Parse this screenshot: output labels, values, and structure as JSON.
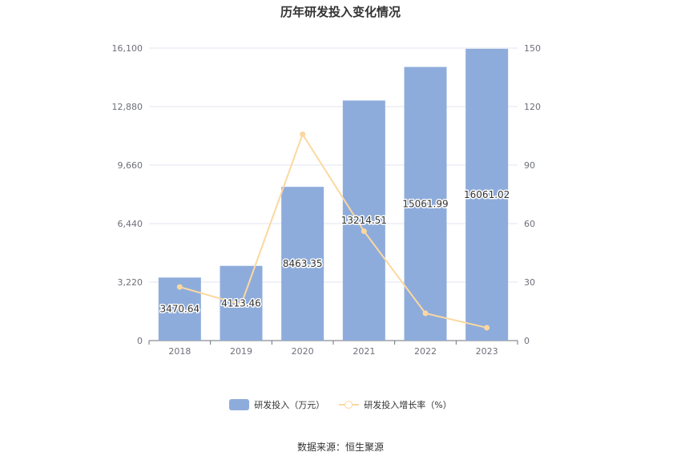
{
  "chart_data": {
    "type": "bar",
    "title": "历年研发投入变化情况",
    "categories": [
      "2018",
      "2019",
      "2020",
      "2021",
      "2022",
      "2023"
    ],
    "series": [
      {
        "name": "研发投入（万元）",
        "type": "bar",
        "axis": "left",
        "values": [
          3470.64,
          4113.46,
          8463.35,
          13214.51,
          15061.99,
          16061.02
        ],
        "labels": [
          "3470.64",
          "4113.46",
          "8463.35",
          "13214.51",
          "15061.99",
          "16061.02"
        ],
        "color": "#8eacdb"
      },
      {
        "name": "研发投入增长率（%）",
        "type": "line",
        "axis": "right",
        "values": [
          27.5,
          18.5,
          105.8,
          56.1,
          14.0,
          6.6
        ],
        "color": "#fbd8a0"
      }
    ],
    "y_left": {
      "min": 0,
      "max": 16100,
      "ticks": [
        0,
        3220,
        6440,
        9660,
        12880,
        16100
      ],
      "tick_labels": [
        "0",
        "3,220",
        "6,440",
        "9,660",
        "12,880",
        "16,100"
      ]
    },
    "y_right": {
      "min": 0,
      "max": 150,
      "ticks": [
        0,
        30,
        60,
        90,
        120,
        150
      ],
      "tick_labels": [
        "0",
        "30",
        "60",
        "90",
        "120",
        "150"
      ]
    },
    "grid": true,
    "legend_position": "bottom"
  },
  "legend": {
    "bar_label": "研发投入（万元）",
    "line_label": "研发投入增长率（%）"
  },
  "source": "数据来源：恒生聚源",
  "colors": {
    "bar": "#8eacdb",
    "line": "#fbd8a0",
    "grid": "#e0e6f1",
    "axis": "#6e7079"
  }
}
